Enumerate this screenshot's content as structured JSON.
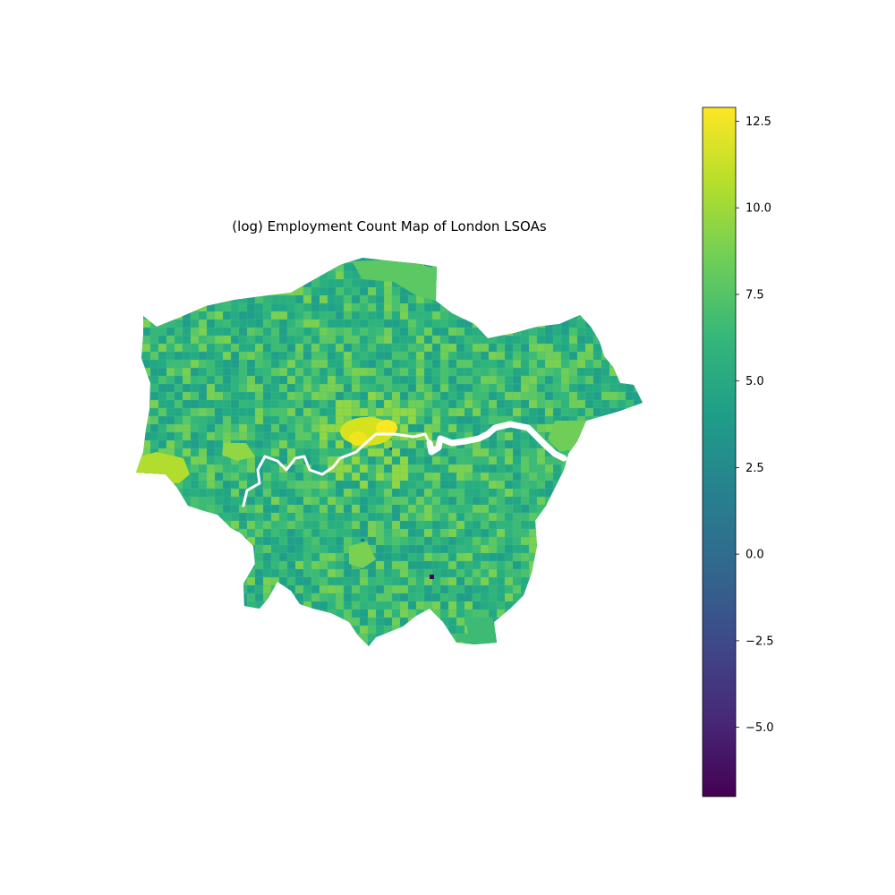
{
  "map": {
    "title": "(log) Employment Count Map of London LSOAs",
    "colormap": "viridis",
    "river_color": "#ffffff"
  },
  "colorbar": {
    "min": -7.0,
    "max": 12.9,
    "ticks": [
      {
        "value": 12.5,
        "label": "12.5"
      },
      {
        "value": 10.0,
        "label": "10.0"
      },
      {
        "value": 7.5,
        "label": "7.5"
      },
      {
        "value": 5.0,
        "label": "5.0"
      },
      {
        "value": 2.5,
        "label": "2.5"
      },
      {
        "value": 0.0,
        "label": "0.0"
      },
      {
        "value": -2.5,
        "label": "−2.5"
      },
      {
        "value": -5.0,
        "label": "−5.0"
      }
    ],
    "stops": [
      "#440154",
      "#482878",
      "#3e4989",
      "#31688e",
      "#26828e",
      "#1f9e89",
      "#35b779",
      "#6ece58",
      "#b5de2b",
      "#fde725"
    ]
  }
}
